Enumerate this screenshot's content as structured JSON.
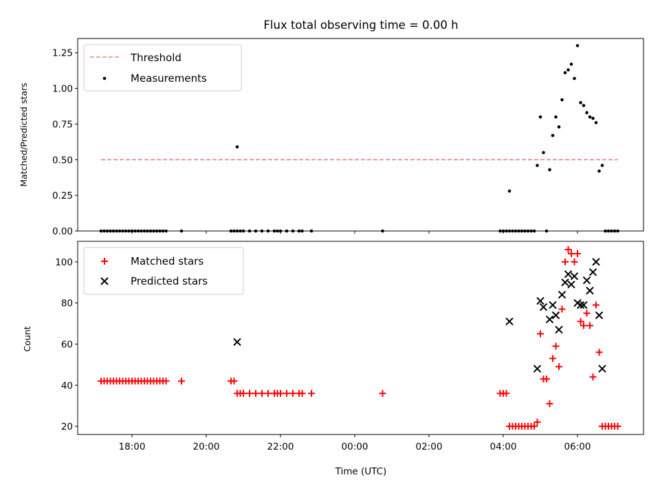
{
  "chart_data": [
    {
      "type": "scatter",
      "title": "Flux total observing time = 0.00 h",
      "xlabel": "",
      "ylabel": "Matched/Predicted stars",
      "ylim": [
        0,
        1.35
      ],
      "yticks": [
        0,
        0.25,
        0.5,
        0.75,
        1.0,
        1.25
      ],
      "ytick_labels": [
        "0.00",
        "0.25",
        "0.50",
        "0.75",
        "1.00",
        "1.25"
      ],
      "legend_position": "top-left",
      "threshold": {
        "name": "Threshold",
        "value": 0.5,
        "x_range": [
          "17:10",
          "07:05"
        ],
        "color": "#f08080",
        "style": "dashed"
      },
      "series": [
        {
          "name": "Measurements",
          "marker": "dot",
          "color": "#000000",
          "x": [
            "17:10",
            "17:15",
            "17:20",
            "17:25",
            "17:30",
            "17:35",
            "17:40",
            "17:45",
            "17:50",
            "17:55",
            "18:00",
            "18:05",
            "18:10",
            "18:15",
            "18:20",
            "18:25",
            "18:30",
            "18:35",
            "18:40",
            "18:45",
            "18:50",
            "18:55",
            "19:20",
            "20:40",
            "20:45",
            "20:50",
            "20:55",
            "21:00",
            "21:10",
            "21:20",
            "21:30",
            "21:40",
            "21:50",
            "21:55",
            "22:00",
            "22:10",
            "22:20",
            "22:30",
            "22:35",
            "22:50",
            "00:45",
            "03:55",
            "04:00",
            "04:05",
            "04:10",
            "04:15",
            "04:20",
            "04:25",
            "04:30",
            "04:35",
            "04:40",
            "04:45",
            "04:50",
            "05:10",
            "20:50",
            "04:10",
            "04:55",
            "05:00",
            "05:05",
            "05:15",
            "05:20",
            "05:25",
            "05:30",
            "05:35",
            "05:40",
            "05:45",
            "05:50",
            "05:55",
            "06:00",
            "06:05",
            "06:10",
            "06:15",
            "06:20",
            "06:25",
            "06:30",
            "06:35",
            "06:40",
            "06:45",
            "06:50",
            "06:55",
            "07:00",
            "07:05"
          ],
          "y": [
            0,
            0,
            0,
            0,
            0,
            0,
            0,
            0,
            0,
            0,
            0,
            0,
            0,
            0,
            0,
            0,
            0,
            0,
            0,
            0,
            0,
            0,
            0,
            0,
            0,
            0,
            0,
            0,
            0,
            0,
            0,
            0,
            0,
            0,
            0,
            0,
            0,
            0,
            0,
            0,
            0,
            0,
            0,
            0,
            0,
            0,
            0,
            0,
            0,
            0,
            0,
            0,
            0,
            0,
            0.59,
            0.28,
            0.46,
            0.8,
            0.55,
            0.43,
            0.67,
            0.8,
            0.73,
            0.92,
            1.11,
            1.13,
            1.17,
            1.07,
            1.3,
            0.9,
            0.88,
            0.83,
            0.8,
            0.79,
            0.76,
            0.42,
            0.46,
            0,
            0,
            0,
            0,
            0
          ]
        }
      ]
    },
    {
      "type": "scatter",
      "title": "",
      "xlabel": "Time (UTC)",
      "ylabel": "Count",
      "ylim": [
        16,
        110
      ],
      "yticks": [
        20,
        40,
        60,
        80,
        100
      ],
      "ytick_labels": [
        "20",
        "40",
        "60",
        "80",
        "100"
      ],
      "xticks": [
        "18:00",
        "20:00",
        "22:00",
        "00:00",
        "02:00",
        "04:00",
        "06:00"
      ],
      "legend_position": "top-left",
      "series": [
        {
          "name": "Matched stars",
          "marker": "plus",
          "color": "#ff0000",
          "x": [
            "17:10",
            "17:15",
            "17:20",
            "17:25",
            "17:30",
            "17:35",
            "17:40",
            "17:45",
            "17:50",
            "17:55",
            "18:00",
            "18:05",
            "18:10",
            "18:15",
            "18:20",
            "18:25",
            "18:30",
            "18:35",
            "18:40",
            "18:45",
            "18:50",
            "18:55",
            "19:20",
            "20:40",
            "20:45",
            "20:50",
            "20:55",
            "21:00",
            "21:10",
            "21:20",
            "21:30",
            "21:40",
            "21:50",
            "21:55",
            "22:00",
            "22:10",
            "22:20",
            "22:30",
            "22:35",
            "22:50",
            "00:45",
            "03:55",
            "04:00",
            "04:05",
            "04:10",
            "04:15",
            "04:20",
            "04:25",
            "04:30",
            "04:35",
            "04:40",
            "04:45",
            "04:50",
            "04:55",
            "05:00",
            "05:05",
            "05:10",
            "05:15",
            "05:20",
            "05:25",
            "05:30",
            "05:35",
            "05:40",
            "05:45",
            "05:50",
            "05:55",
            "06:00",
            "06:05",
            "06:10",
            "06:15",
            "06:20",
            "06:25",
            "06:30",
            "06:35",
            "06:40",
            "06:45",
            "06:50",
            "06:55",
            "07:00",
            "07:05"
          ],
          "y": [
            42,
            42,
            42,
            42,
            42,
            42,
            42,
            42,
            42,
            42,
            42,
            42,
            42,
            42,
            42,
            42,
            42,
            42,
            42,
            42,
            42,
            42,
            42,
            42,
            42,
            36,
            36,
            36,
            36,
            36,
            36,
            36,
            36,
            36,
            36,
            36,
            36,
            36,
            36,
            36,
            36,
            36,
            36,
            36,
            20,
            20,
            20,
            20,
            20,
            20,
            20,
            20,
            20,
            22,
            65,
            43,
            43,
            31,
            53,
            59,
            49,
            77,
            100,
            106,
            104,
            100,
            104,
            71,
            69,
            75,
            69,
            44,
            79,
            56,
            20,
            20,
            20,
            20,
            20,
            20
          ]
        },
        {
          "name": "Predicted stars",
          "marker": "x",
          "color": "#000000",
          "x": [
            "20:50",
            "04:10",
            "04:55",
            "05:00",
            "05:05",
            "05:15",
            "05:20",
            "05:25",
            "05:30",
            "05:35",
            "05:40",
            "05:45",
            "05:50",
            "05:55",
            "06:00",
            "06:05",
            "06:10",
            "06:15",
            "06:20",
            "06:25",
            "06:30",
            "06:35",
            "06:40"
          ],
          "y": [
            61,
            71,
            48,
            81,
            78,
            72,
            79,
            74,
            67,
            84,
            90,
            94,
            89,
            93,
            80,
            79,
            79,
            91,
            86,
            95,
            100,
            74,
            48
          ]
        }
      ]
    }
  ]
}
